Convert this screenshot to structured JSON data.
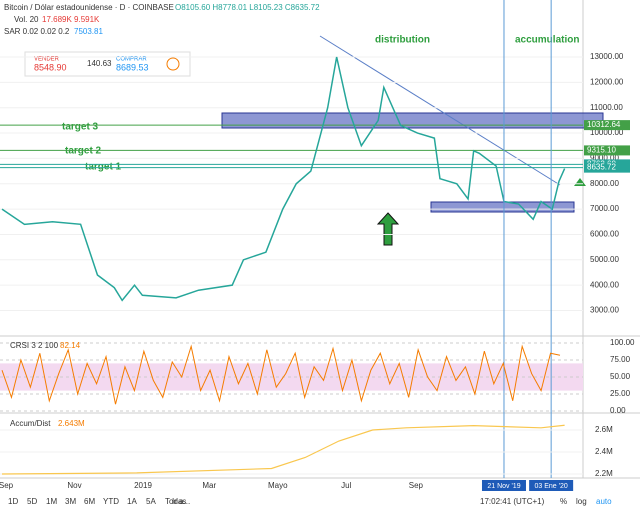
{
  "header": {
    "symbol": "Bitcoin / Dólar estadounidense · D · COINBASE",
    "ohlc": "O8105.60 H8778.01 L8105.23 C8635.72",
    "vol": "Vol. 20",
    "vol_values": "17.689K 9.591K",
    "sar": "SAR 0.02 0.02 0.2",
    "sar_value": "7503.81"
  },
  "trade": {
    "sell_label": "VENDER",
    "sell": "8548.90",
    "spread": "140.63",
    "buy_label": "COMPRAR",
    "buy": "8689.53"
  },
  "annotations": {
    "distribution": "distribution",
    "accumulation": "accumulation",
    "target3": "target 3",
    "target2": "target 2",
    "target1": "target 1"
  },
  "price": {
    "yticks": [
      {
        "value": 13000,
        "label": "13000.00"
      },
      {
        "value": 12000,
        "label": "12000.00"
      },
      {
        "value": 11000,
        "label": "11000.00"
      },
      {
        "value": 10000,
        "label": "10000.00"
      },
      {
        "value": 9000,
        "label": "9000.00"
      },
      {
        "value": 8000,
        "label": "8000.00"
      },
      {
        "value": 7000,
        "label": "7000.00"
      },
      {
        "value": 6000,
        "label": "6000.00"
      },
      {
        "value": 5000,
        "label": "5000.00"
      },
      {
        "value": 4000,
        "label": "4000.00"
      },
      {
        "value": 3000,
        "label": "3000.00"
      }
    ],
    "levels": [
      {
        "value": 10312.64,
        "label": "10312.64"
      },
      {
        "value": 9315.1,
        "label": "9315.10"
      },
      {
        "value": 8763.6,
        "label": "8763.60"
      },
      {
        "value": 8635.72,
        "label": "8635.72"
      }
    ],
    "days": [
      0,
      20,
      45,
      70,
      76,
      85,
      100,
      107,
      118,
      125,
      155,
      175,
      205,
      215,
      235,
      250,
      262,
      275,
      290,
      298,
      308,
      320,
      335,
      340,
      355,
      370,
      385,
      390,
      405,
      415,
      420,
      425,
      440,
      447,
      460,
      473,
      480,
      490,
      496,
      501
    ],
    "close": [
      7000,
      6400,
      6500,
      6400,
      5600,
      4400,
      3900,
      3400,
      4000,
      3600,
      3500,
      3800,
      4000,
      5000,
      5300,
      7000,
      8000,
      8500,
      11000,
      13000,
      11000,
      9500,
      10500,
      11800,
      10300,
      10000,
      9800,
      8200,
      8000,
      7400,
      9300,
      9200,
      8700,
      7300,
      7200,
      6600,
      7300,
      7000,
      8100,
      8600
    ]
  },
  "crsi": {
    "label": "CRSI 3 2 100",
    "value": "82.14",
    "yticks": [
      {
        "value": 100,
        "label": "100.00"
      },
      {
        "value": 75,
        "label": "75.00"
      },
      {
        "value": 50,
        "label": "50.00"
      },
      {
        "value": 25,
        "label": "25.00"
      },
      {
        "value": 0,
        "label": "0.00"
      }
    ],
    "values": [
      60,
      20,
      75,
      35,
      85,
      15,
      55,
      90,
      25,
      70,
      40,
      80,
      10,
      65,
      30,
      88,
      45,
      20,
      72,
      50,
      95,
      30,
      60,
      15,
      80,
      40,
      70,
      25,
      90,
      35,
      55,
      85,
      20,
      65,
      45,
      92,
      30,
      75,
      15,
      60,
      85,
      40,
      70,
      20,
      90,
      50,
      30,
      80,
      45,
      65,
      25,
      88,
      40,
      70,
      15,
      95,
      55,
      30,
      85,
      82
    ]
  },
  "accum": {
    "label": "Accum/Dist",
    "value": "2.643M",
    "yticks": [
      {
        "value": 2.6,
        "label": "2.6M"
      },
      {
        "value": 2.4,
        "label": "2.4M"
      },
      {
        "value": 2.2,
        "label": "2.2M"
      }
    ],
    "days": [
      0,
      120,
      240,
      270,
      300,
      330,
      360,
      420,
      480,
      501
    ],
    "values": [
      2.2,
      2.21,
      2.25,
      2.35,
      2.5,
      2.6,
      2.62,
      2.64,
      2.62,
      2.643
    ]
  },
  "xaxis": {
    "labels": [
      "Sep",
      "Nov",
      "2019",
      "Mar",
      "Mayo",
      "Jul",
      "Sep"
    ],
    "days": [
      0,
      61,
      122,
      181,
      242,
      303,
      365
    ],
    "marker1": "21 Nov '19",
    "marker1_day": 447,
    "marker2": "03 Ene '20",
    "marker2_day": 489
  },
  "toolbar": {
    "ranges": [
      "1D",
      "5D",
      "1M",
      "3M",
      "6M",
      "YTD",
      "1A",
      "5A",
      "Todas"
    ],
    "goto": "Ir a...",
    "time": "17:02:41 (UTC+1)",
    "pct": "%",
    "log": "log",
    "auto": "auto"
  }
}
